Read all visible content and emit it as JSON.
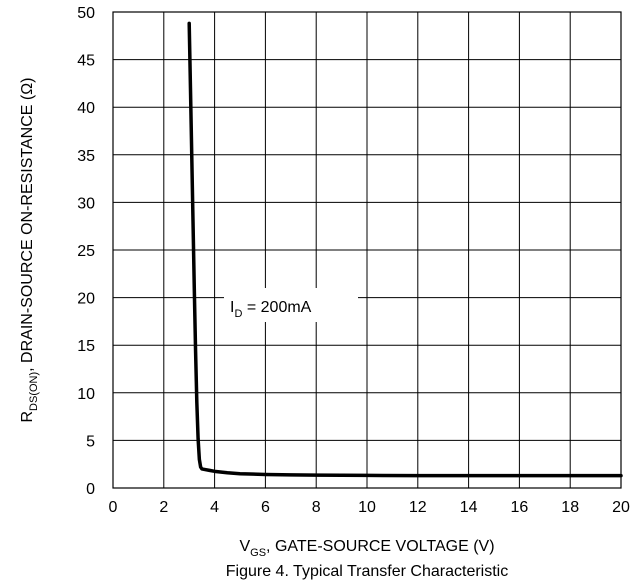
{
  "chart_data": {
    "type": "line",
    "title": "",
    "xlabel": {
      "main": "V",
      "sub": "GS",
      "rest": ", GATE-SOURCE VOLTAGE (V)"
    },
    "ylabel": {
      "main": "R",
      "sub": "DS(ON)",
      "rest": ", DRAIN-SOURCE ON-RESISTANCE (Ω)"
    },
    "xlim": [
      0,
      20
    ],
    "ylim": [
      0,
      50
    ],
    "x_ticks": [
      "0",
      "2",
      "4",
      "6",
      "8",
      "10",
      "12",
      "14",
      "16",
      "18",
      "20"
    ],
    "y_ticks": [
      "0",
      "5",
      "10",
      "15",
      "20",
      "25",
      "30",
      "35",
      "40",
      "45",
      "50"
    ],
    "grid": true,
    "series": [
      {
        "x": [
          3.0,
          3.05,
          3.1,
          3.15,
          3.2,
          3.25,
          3.3,
          3.35,
          3.4,
          3.45,
          3.5,
          3.6,
          3.8,
          4.0,
          4.5,
          5.0,
          6.0,
          7.0,
          8.0,
          10.0,
          12.0,
          14.0,
          16.0,
          18.0,
          20.0
        ],
        "y": [
          48.8,
          42.0,
          35.0,
          28.0,
          21.0,
          14.5,
          9.0,
          5.2,
          3.0,
          2.2,
          2.0,
          1.95,
          1.85,
          1.75,
          1.6,
          1.5,
          1.42,
          1.38,
          1.35,
          1.32,
          1.3,
          1.3,
          1.3,
          1.3,
          1.3
        ]
      }
    ],
    "annotation": {
      "main": "I",
      "sub": "D",
      "rest": " = 200mA"
    },
    "colors": {
      "curve": "#000000",
      "grid": "#000000",
      "background": "#ffffff"
    }
  },
  "caption": "Figure 4. Typical Transfer Characteristic"
}
